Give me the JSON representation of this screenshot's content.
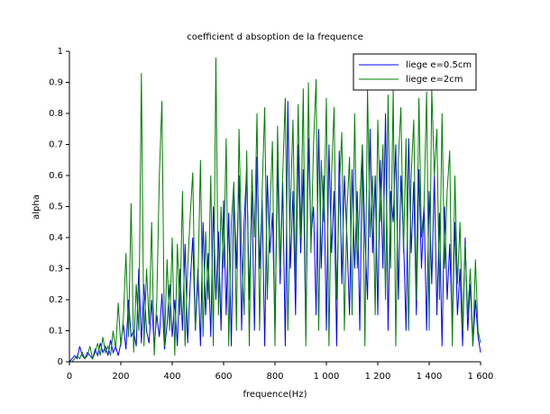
{
  "chart_data": {
    "type": "line",
    "title": "coefficient d absoption de la frequence",
    "x_label": "frequence(Hz)",
    "y_label": "alpha",
    "x": [
      0,
      10,
      20,
      30,
      40,
      50,
      60,
      70,
      80,
      90,
      100,
      110,
      120,
      130,
      140,
      150,
      160,
      170,
      180,
      190,
      200,
      210,
      220,
      230,
      240,
      250,
      260,
      270,
      280,
      290,
      300,
      310,
      320,
      330,
      340,
      350,
      360,
      370,
      380,
      390,
      400,
      410,
      420,
      430,
      440,
      450,
      460,
      470,
      480,
      490,
      500,
      510,
      520,
      530,
      540,
      550,
      560,
      570,
      580,
      590,
      600,
      610,
      620,
      630,
      640,
      650,
      660,
      670,
      680,
      690,
      700,
      710,
      720,
      730,
      740,
      750,
      760,
      770,
      780,
      790,
      800,
      810,
      820,
      830,
      840,
      850,
      860,
      870,
      880,
      890,
      900,
      910,
      920,
      930,
      940,
      950,
      960,
      970,
      980,
      990,
      1000,
      1010,
      1020,
      1030,
      1040,
      1050,
      1060,
      1070,
      1080,
      1090,
      1100,
      1110,
      1120,
      1130,
      1140,
      1150,
      1160,
      1170,
      1180,
      1190,
      1200,
      1210,
      1220,
      1230,
      1240,
      1250,
      1260,
      1270,
      1280,
      1290,
      1300,
      1310,
      1320,
      1330,
      1340,
      1350,
      1360,
      1370,
      1380,
      1390,
      1400,
      1410,
      1420,
      1430,
      1440,
      1450,
      1460,
      1470,
      1480,
      1490,
      1500,
      1510,
      1520,
      1530,
      1540,
      1550,
      1560,
      1570,
      1580,
      1590,
      1600
    ],
    "series": [
      {
        "name": "liege e=0.5cm",
        "color": "#0000ff",
        "values": [
          0,
          0.01,
          0.02,
          0.01,
          0.05,
          0.02,
          0.01,
          0.03,
          0.02,
          0.01,
          0.04,
          0.02,
          0.06,
          0.03,
          0.05,
          0.02,
          0.07,
          0.03,
          0.05,
          0.02,
          0.06,
          0.12,
          0.04,
          0.2,
          0.08,
          0.1,
          0.05,
          0.3,
          0.06,
          0.25,
          0.1,
          0.06,
          0.2,
          0.05,
          0.15,
          0.08,
          0.22,
          0.04,
          0.12,
          0.25,
          0.08,
          0.2,
          0.05,
          0.3,
          0.1,
          0.38,
          0.06,
          0.25,
          0.4,
          0.1,
          0.3,
          0.05,
          0.45,
          0.15,
          0.35,
          0.08,
          0.5,
          0.2,
          0.42,
          0.1,
          0.52,
          0.15,
          0.48,
          0.05,
          0.55,
          0.3,
          0.6,
          0.1,
          0.45,
          0.63,
          0.2,
          0.55,
          0.1,
          0.66,
          0.3,
          0.52,
          0.05,
          0.6,
          0.35,
          0.48,
          0.1,
          0.65,
          0.25,
          0.58,
          0.05,
          0.84,
          0.3,
          0.55,
          0.15,
          0.7,
          0.35,
          0.62,
          0.08,
          0.72,
          0.4,
          0.5,
          0.15,
          0.75,
          0.3,
          0.6,
          0.1,
          0.7,
          0.35,
          0.55,
          0.05,
          0.68,
          0.25,
          0.6,
          0.4,
          0.15,
          0.62,
          0.3,
          0.55,
          0.1,
          0.7,
          0.4,
          0.2,
          0.75,
          0.35,
          0.6,
          0.15,
          0.65,
          0.3,
          0.8,
          0.1,
          0.55,
          0.45,
          0.7,
          0.2,
          0.6,
          0.4,
          0.1,
          0.72,
          0.35,
          0.58,
          0.15,
          0.62,
          0.3,
          0.5,
          0.1,
          0.55,
          0.25,
          0.6,
          0.15,
          0.48,
          0.05,
          0.5,
          0.2,
          0.38,
          0.1,
          0.45,
          0.15,
          0.3,
          0.05,
          0.4,
          0.1,
          0.25,
          0.05,
          0.2,
          0.08,
          0.03
        ]
      },
      {
        "name": "liege e=2cm",
        "color": "#007f00",
        "values": [
          0,
          0,
          0.01,
          0.02,
          0.01,
          0.03,
          0.01,
          0.02,
          0.05,
          0.01,
          0.03,
          0.06,
          0.02,
          0.08,
          0.03,
          0.05,
          0.02,
          0.1,
          0.04,
          0.19,
          0.05,
          0.14,
          0.35,
          0.08,
          0.51,
          0.03,
          0.25,
          0.1,
          0.93,
          0.05,
          0.3,
          0.12,
          0.45,
          0.02,
          0.2,
          0.6,
          0.84,
          0.05,
          0.33,
          0.1,
          0.4,
          0.02,
          0.38,
          0.15,
          0.55,
          0.05,
          0.3,
          0.47,
          0.61,
          0.1,
          0.25,
          0.65,
          0.08,
          0.42,
          0.2,
          0.6,
          0.05,
          0.98,
          0.15,
          0.5,
          0.3,
          0.72,
          0.05,
          0.45,
          0.58,
          0.1,
          0.75,
          0.35,
          0.15,
          0.68,
          0.05,
          0.62,
          0.4,
          0.8,
          0.1,
          0.55,
          0.82,
          0.2,
          0.48,
          0.71,
          0.05,
          0.76,
          0.3,
          0.6,
          0.85,
          0.1,
          0.5,
          0.78,
          0.25,
          0.83,
          0.4,
          0.88,
          0.05,
          0.9,
          0.35,
          0.7,
          0.91,
          0.1,
          0.65,
          0.45,
          0.85,
          0.05,
          0.6,
          0.82,
          0.2,
          0.55,
          0.74,
          0.1,
          0.48,
          0.66,
          0.15,
          0.8,
          0.3,
          0.52,
          0.7,
          0.05,
          0.88,
          0.4,
          0.6,
          0.15,
          0.78,
          0.45,
          0.7,
          0.2,
          0.86,
          0.3,
          0.88,
          0.05,
          0.65,
          0.82,
          0.35,
          0.72,
          0.1,
          0.6,
          0.78,
          0.2,
          0.85,
          0.4,
          0.5,
          0.87,
          0.1,
          0.88,
          0.6,
          0.75,
          0.2,
          0.8,
          0.3,
          0.55,
          0.68,
          0.05,
          0.6,
          0.25,
          0.45,
          0.1,
          0.38,
          0.15,
          0.3,
          0.05,
          0.33,
          0.1,
          0.06
        ]
      }
    ],
    "xlim": [
      0,
      1600
    ],
    "xticks": [
      0,
      200,
      400,
      600,
      800,
      {
        "value": 1000,
        "label": "1 000"
      },
      {
        "value": 1200,
        "label": "1 200"
      },
      {
        "value": 1400,
        "label": "1 400"
      },
      {
        "value": 1600,
        "label": "1 600"
      }
    ],
    "ylim": [
      0,
      1
    ],
    "yticks": [
      0,
      0.1,
      0.2,
      0.3,
      0.4,
      0.5,
      0.6,
      0.7,
      0.8,
      0.9,
      1
    ],
    "legend": "upper right"
  }
}
